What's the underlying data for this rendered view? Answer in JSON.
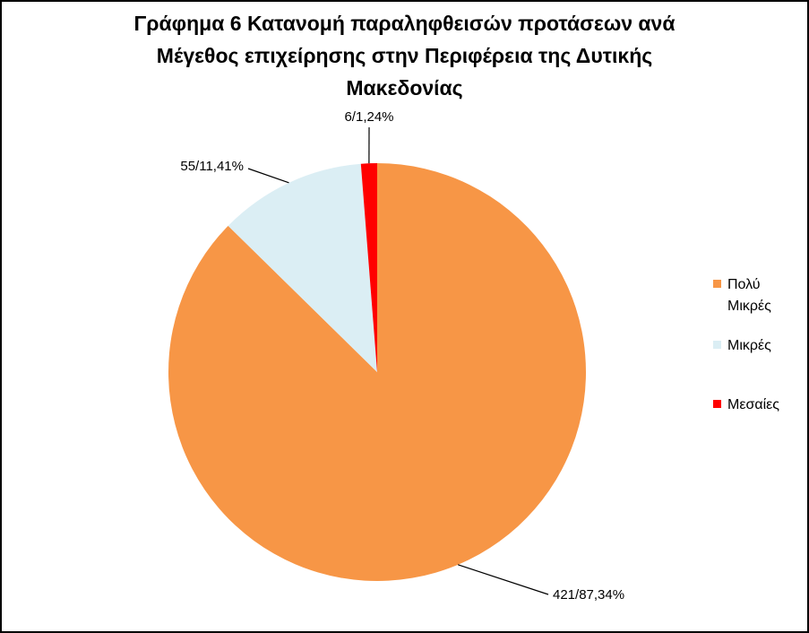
{
  "chart_data": {
    "type": "pie",
    "title_lines": [
      "Γράφημα 6 Κατανομή παραληφθεισών προτάσεων ανά",
      "Μέγεθος επιχείρησης στην Περιφέρεια  της Δυτικής",
      "Μακεδονίας"
    ],
    "slices": [
      {
        "name": "Πολύ Μικρές",
        "legend_lines": [
          "Πολύ",
          "Μικρές"
        ],
        "value": 421,
        "percent": 87.34,
        "label": "421/87,34%",
        "color": "#F79646"
      },
      {
        "name": "Μικρές",
        "legend_lines": [
          "Μικρές"
        ],
        "value": 55,
        "percent": 11.41,
        "label": "55/11,41%",
        "color": "#DBEEF4"
      },
      {
        "name": "Μεσαίες",
        "legend_lines": [
          "Μεσαίες"
        ],
        "value": 6,
        "percent": 1.24,
        "label": "6/1,24%",
        "color": "#FF0000"
      }
    ],
    "legend_position": "right"
  }
}
